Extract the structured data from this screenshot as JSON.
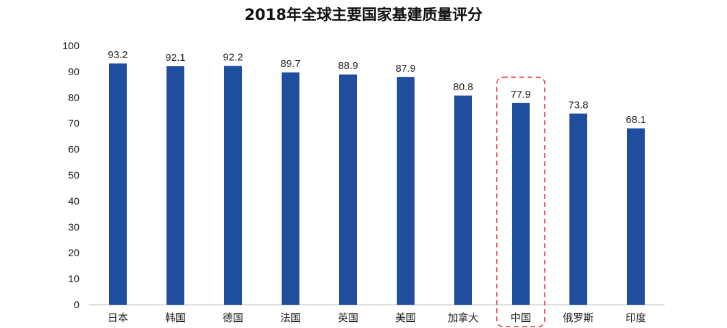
{
  "chart_data": {
    "type": "bar",
    "title": "2018年全球主要国家基建质量评分",
    "categories": [
      "日本",
      "韩国",
      "德国",
      "法国",
      "英国",
      "美国",
      "加拿大",
      "中国",
      "俄罗斯",
      "印度"
    ],
    "values": [
      93.2,
      92.1,
      92.2,
      89.7,
      88.9,
      87.9,
      80.8,
      77.9,
      73.8,
      68.1
    ],
    "data_labels": [
      "93.2",
      "92.1",
      "92.2",
      "89.7",
      "88.9",
      "87.9",
      "80.8",
      "77.9",
      "73.8",
      "68.1"
    ],
    "y_ticks": [
      "0",
      "10",
      "20",
      "30",
      "40",
      "50",
      "60",
      "70",
      "80",
      "90",
      "100"
    ],
    "ylim": [
      0,
      100
    ],
    "xlabel": "",
    "ylabel": "",
    "grid": false,
    "legend": "none",
    "highlight_category": "中国",
    "colors": {
      "bar": "#1f4e9e",
      "highlight_box": "#e03c3c",
      "axis": "#bfbfbf"
    }
  }
}
